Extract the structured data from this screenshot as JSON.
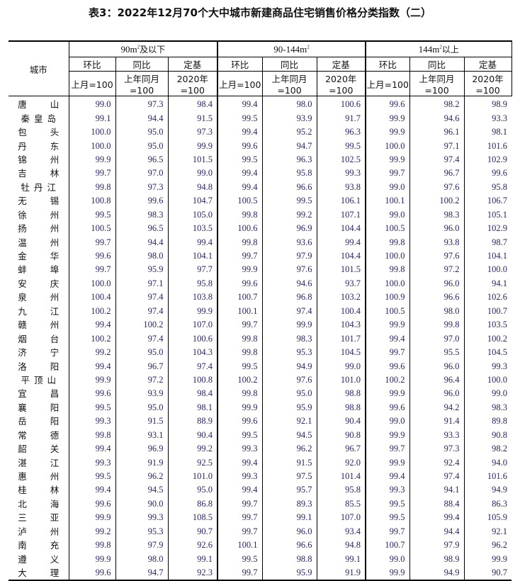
{
  "title": "表3：2022年12月70个大中城市新建商品住宅销售价格分类指数（二）",
  "header": {
    "city": "城市",
    "groups": [
      {
        "label": "90m",
        "sup": "2",
        "suffix": "及以下"
      },
      {
        "label": "90-144m",
        "sup": "2",
        "suffix": ""
      },
      {
        "label": "144m",
        "sup": "2",
        "suffix": "以上"
      }
    ],
    "subs": [
      "环比",
      "同比",
      "定基"
    ],
    "bases": [
      "上月=100",
      "上年同月=100",
      "2020年=100"
    ]
  },
  "rows": [
    [
      "唐山",
      [
        99.0,
        97.3,
        98.4,
        99.4,
        98.0,
        100.6,
        99.6,
        98.2,
        98.9
      ]
    ],
    [
      "秦皇岛",
      [
        99.1,
        94.4,
        91.5,
        99.5,
        93.9,
        91.7,
        99.9,
        94.6,
        93.3
      ]
    ],
    [
      "包头",
      [
        100.0,
        95.0,
        97.3,
        99.4,
        95.2,
        96.3,
        99.9,
        96.1,
        98.1
      ]
    ],
    [
      "丹东",
      [
        100.0,
        95.0,
        99.9,
        99.6,
        94.7,
        99.5,
        100.0,
        97.1,
        101.6
      ]
    ],
    [
      "锦州",
      [
        99.9,
        96.5,
        101.5,
        99.5,
        96.3,
        102.5,
        99.9,
        97.4,
        102.9
      ]
    ],
    [
      "吉林",
      [
        99.7,
        97.0,
        99.0,
        99.4,
        95.8,
        99.3,
        99.7,
        96.7,
        99.6
      ]
    ],
    [
      "牡丹江",
      [
        99.8,
        97.3,
        94.8,
        99.4,
        96.6,
        93.8,
        99.0,
        97.6,
        95.8
      ]
    ],
    [
      "无锡",
      [
        100.8,
        99.6,
        104.7,
        100.5,
        99.5,
        106.1,
        100.1,
        100.2,
        106.7
      ]
    ],
    [
      "徐州",
      [
        99.5,
        98.3,
        105.0,
        99.8,
        99.2,
        107.1,
        99.0,
        98.3,
        105.1
      ]
    ],
    [
      "扬州",
      [
        100.5,
        96.5,
        103.5,
        100.6,
        96.9,
        104.4,
        100.5,
        96.0,
        102.9
      ]
    ],
    [
      "温州",
      [
        99.7,
        94.4,
        99.4,
        99.8,
        93.6,
        99.4,
        99.8,
        93.8,
        98.7
      ]
    ],
    [
      "金华",
      [
        99.6,
        98.0,
        104.1,
        99.7,
        97.9,
        104.4,
        100.0,
        97.6,
        104.1
      ]
    ],
    [
      "蚌埠",
      [
        99.7,
        95.9,
        97.7,
        99.9,
        97.6,
        101.5,
        99.8,
        97.2,
        100.0
      ]
    ],
    [
      "安庆",
      [
        100.0,
        97.1,
        95.8,
        99.6,
        94.6,
        93.7,
        100.0,
        96.0,
        94.1
      ]
    ],
    [
      "泉州",
      [
        100.4,
        97.4,
        103.8,
        100.7,
        96.8,
        103.2,
        100.9,
        96.6,
        102.6
      ]
    ],
    [
      "九江",
      [
        100.2,
        97.4,
        99.9,
        100.1,
        97.4,
        100.4,
        100.5,
        98.0,
        100.7
      ]
    ],
    [
      "赣州",
      [
        99.4,
        100.2,
        107.0,
        99.7,
        99.9,
        104.3,
        99.9,
        99.8,
        103.5
      ]
    ],
    [
      "烟台",
      [
        100.2,
        97.4,
        100.6,
        99.8,
        98.3,
        101.7,
        99.4,
        97.0,
        100.2
      ]
    ],
    [
      "济宁",
      [
        99.2,
        95.0,
        104.3,
        99.8,
        95.3,
        104.5,
        99.7,
        95.5,
        104.5
      ]
    ],
    [
      "洛阳",
      [
        99.4,
        96.7,
        97.4,
        99.5,
        94.9,
        99.0,
        99.6,
        96.0,
        99.3
      ]
    ],
    [
      "平顶山",
      [
        99.9,
        97.2,
        100.8,
        100.2,
        97.6,
        101.0,
        100.2,
        96.4,
        100.0
      ]
    ],
    [
      "宜昌",
      [
        99.6,
        93.9,
        98.4,
        99.8,
        95.0,
        98.8,
        99.9,
        96.0,
        99.0
      ]
    ],
    [
      "襄阳",
      [
        99.5,
        95.0,
        98.1,
        99.9,
        95.9,
        98.8,
        99.6,
        94.2,
        98.3
      ]
    ],
    [
      "岳阳",
      [
        99.3,
        91.5,
        88.9,
        99.6,
        92.1,
        90.4,
        99.0,
        91.4,
        89.8
      ]
    ],
    [
      "常德",
      [
        99.8,
        93.1,
        90.4,
        99.5,
        94.5,
        90.8,
        99.9,
        93.3,
        90.8
      ]
    ],
    [
      "韶关",
      [
        99.4,
        96.9,
        99.2,
        99.3,
        96.2,
        96.7,
        99.7,
        97.3,
        98.2
      ]
    ],
    [
      "湛江",
      [
        99.3,
        91.9,
        92.5,
        99.4,
        91.5,
        92.0,
        99.9,
        92.4,
        94.0
      ]
    ],
    [
      "惠州",
      [
        99.5,
        96.2,
        101.0,
        99.3,
        97.5,
        101.4,
        99.4,
        97.4,
        101.6
      ]
    ],
    [
      "桂林",
      [
        99.4,
        94.5,
        95.0,
        99.4,
        95.7,
        95.8,
        99.3,
        94.1,
        94.9
      ]
    ],
    [
      "北海",
      [
        99.6,
        90.0,
        86.8,
        99.7,
        89.3,
        85.5,
        99.5,
        88.4,
        86.3
      ]
    ],
    [
      "三亚",
      [
        99.9,
        99.3,
        108.5,
        99.7,
        99.1,
        107.0,
        99.5,
        99.4,
        105.9
      ]
    ],
    [
      "泸州",
      [
        99.2,
        95.3,
        90.7,
        99.7,
        96.0,
        93.4,
        99.7,
        94.4,
        92.1
      ]
    ],
    [
      "南充",
      [
        99.8,
        97.9,
        92.6,
        100.1,
        96.6,
        94.8,
        100.7,
        97.9,
        96.2
      ]
    ],
    [
      "遵义",
      [
        99.9,
        98.0,
        99.1,
        99.5,
        98.8,
        99.1,
        99.0,
        98.9,
        99.9
      ]
    ],
    [
      "大理",
      [
        99.6,
        94.7,
        92.3,
        99.7,
        95.9,
        91.9,
        99.9,
        94.9,
        90.7
      ]
    ]
  ]
}
